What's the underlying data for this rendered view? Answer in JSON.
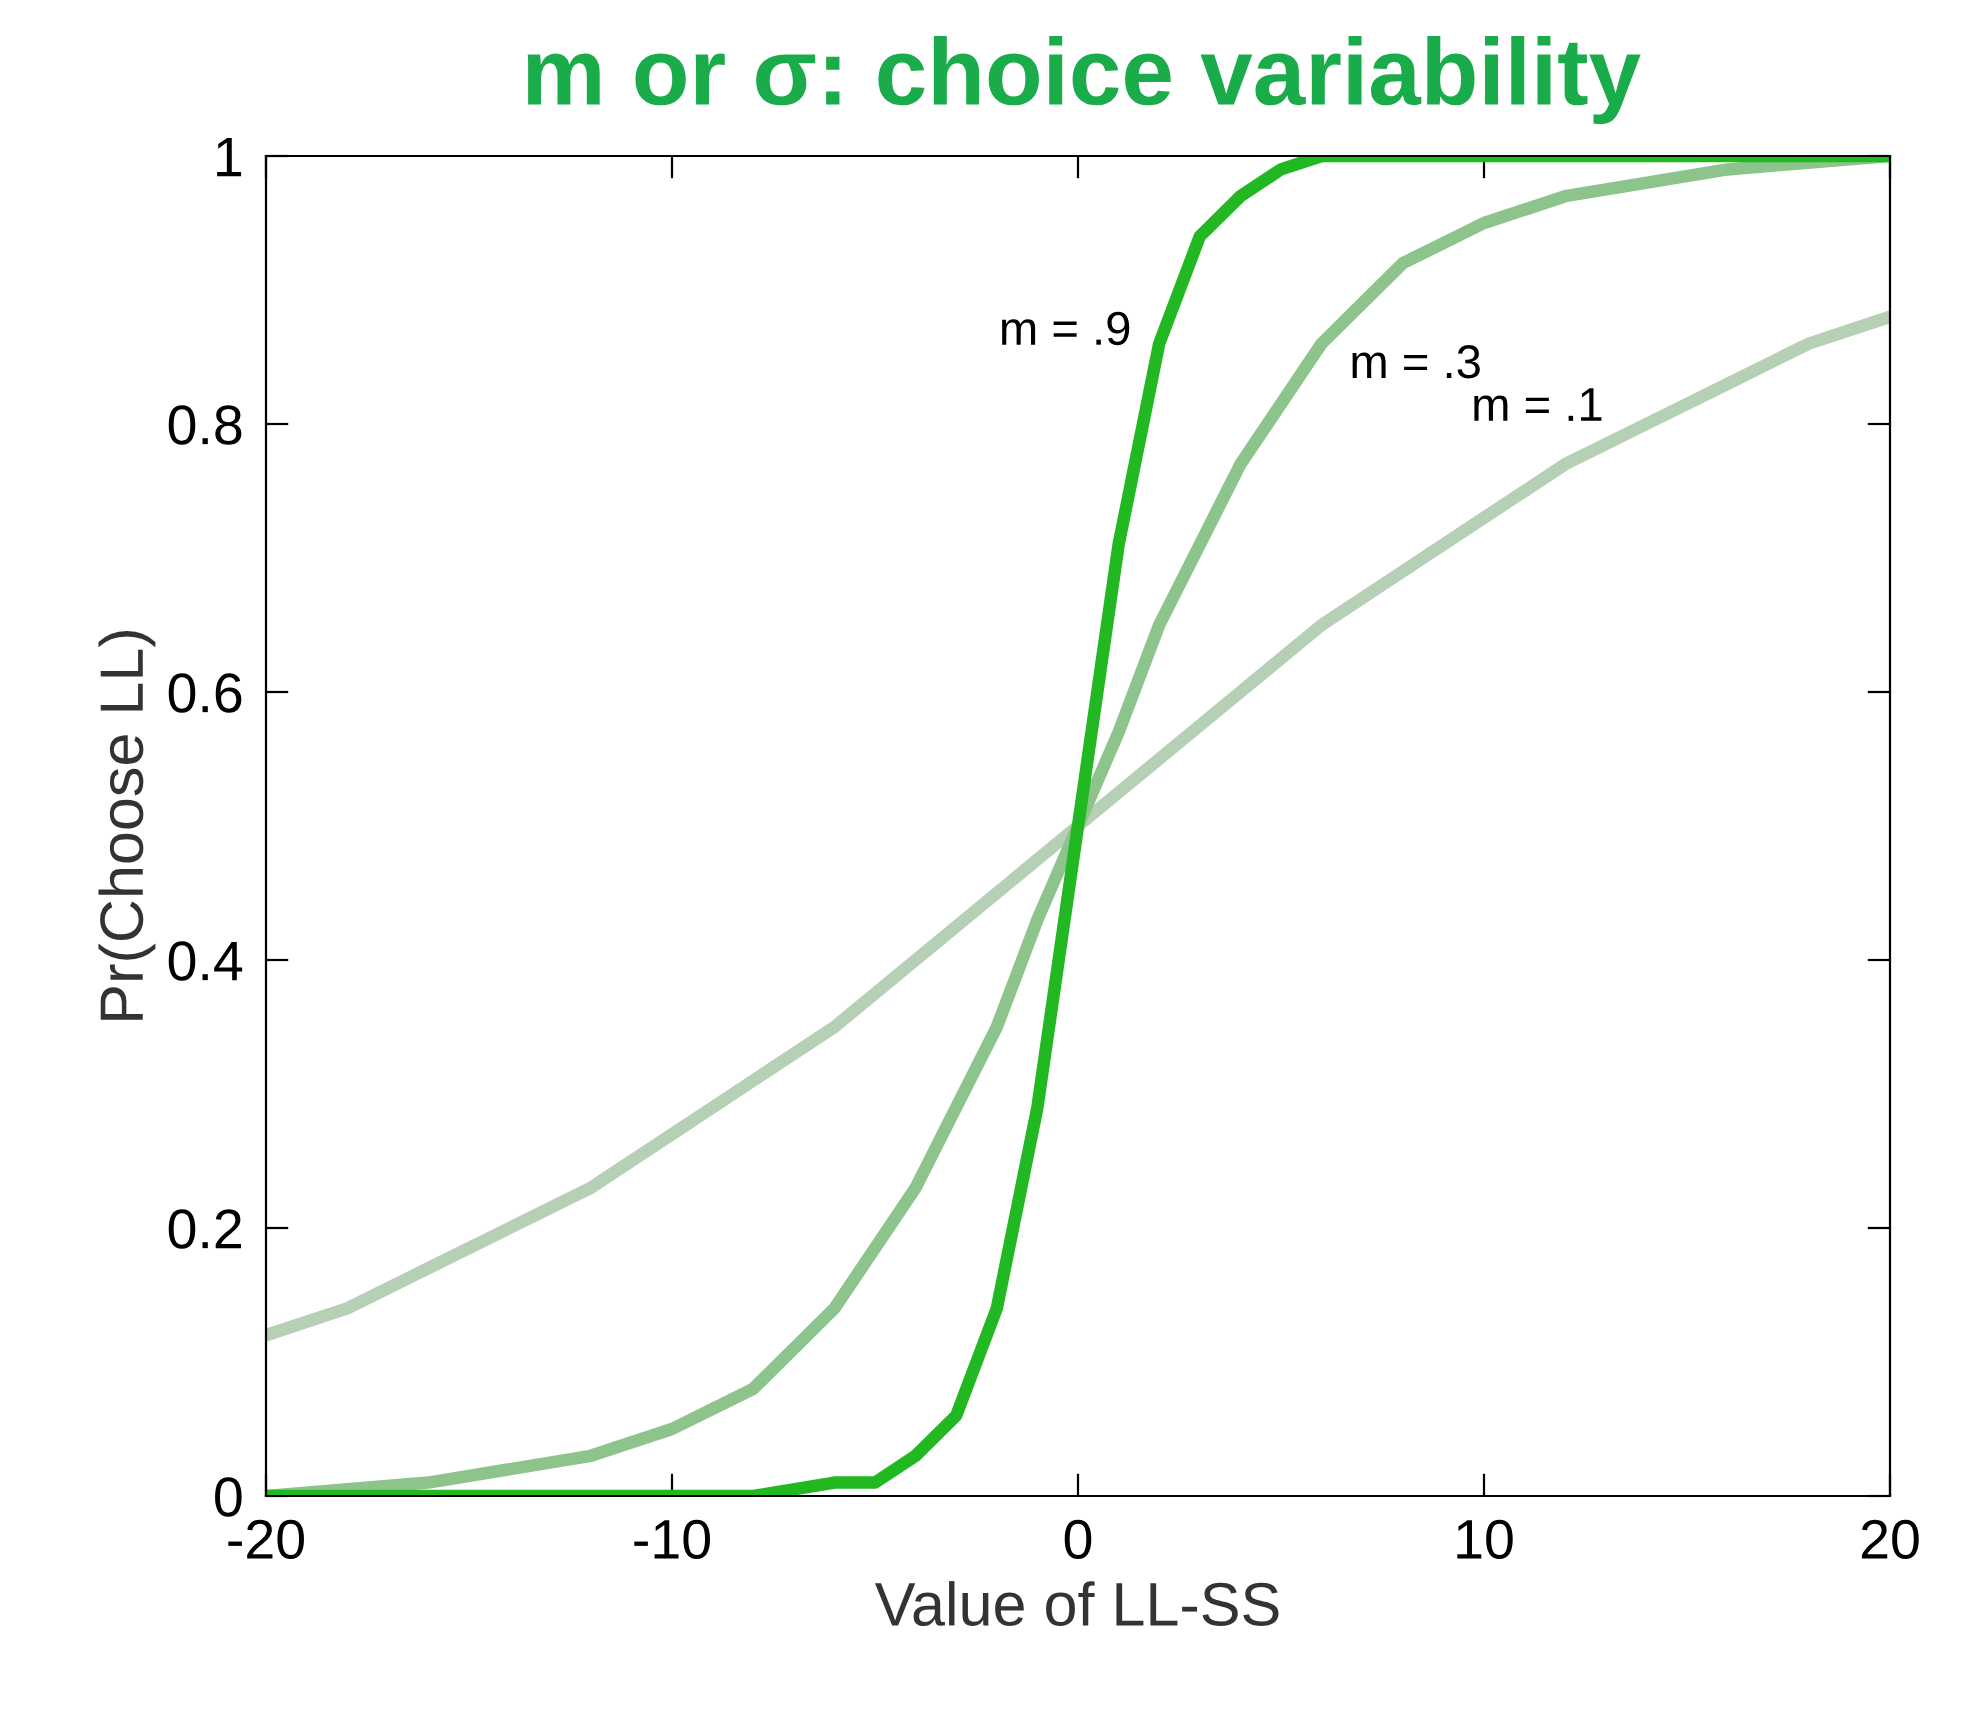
{
  "chart_data": {
    "type": "line",
    "title": "m or σ: choice variability",
    "xlabel": "Value of LL-SS",
    "ylabel": "Pr(Choose LL)",
    "xlim": [
      -20,
      20
    ],
    "xticks": [
      -20,
      -10,
      0,
      10,
      20
    ],
    "ylim": [
      0,
      1
    ],
    "yticks": [
      0,
      0.2,
      0.4,
      0.6,
      0.8,
      1
    ],
    "grid": false,
    "line_style": "solid",
    "marker": "none",
    "series": [
      {
        "name": "m = .1",
        "color": "#b5d0b5",
        "x": [
          -20,
          -18,
          -16,
          -14,
          -12,
          -10,
          -8,
          -6,
          -4,
          -2,
          0,
          2,
          4,
          6,
          8,
          10,
          12,
          14,
          16,
          18,
          20
        ],
        "values": [
          0.12,
          0.14,
          0.17,
          0.2,
          0.23,
          0.27,
          0.31,
          0.35,
          0.4,
          0.45,
          0.5,
          0.55,
          0.6,
          0.65,
          0.69,
          0.73,
          0.77,
          0.8,
          0.83,
          0.86,
          0.88
        ]
      },
      {
        "name": "m = .3",
        "color": "#8cc48c",
        "x": [
          -20,
          -16,
          -12,
          -10,
          -8,
          -6,
          -4,
          -2,
          -1,
          0,
          1,
          2,
          4,
          6,
          8,
          10,
          12,
          16,
          20
        ],
        "values": [
          0.0,
          0.01,
          0.03,
          0.05,
          0.08,
          0.14,
          0.23,
          0.35,
          0.43,
          0.5,
          0.57,
          0.65,
          0.77,
          0.86,
          0.92,
          0.95,
          0.97,
          0.99,
          1.0
        ]
      },
      {
        "name": "m = .9",
        "color": "#22b822",
        "x": [
          -20,
          -8,
          -6,
          -5,
          -4,
          -3,
          -2,
          -1,
          0,
          1,
          2,
          3,
          4,
          5,
          6,
          20
        ],
        "values": [
          0.0,
          0.0,
          0.01,
          0.01,
          0.03,
          0.06,
          0.14,
          0.29,
          0.5,
          0.71,
          0.86,
          0.94,
          0.97,
          0.99,
          1.0,
          1.0
        ]
      }
    ]
  }
}
